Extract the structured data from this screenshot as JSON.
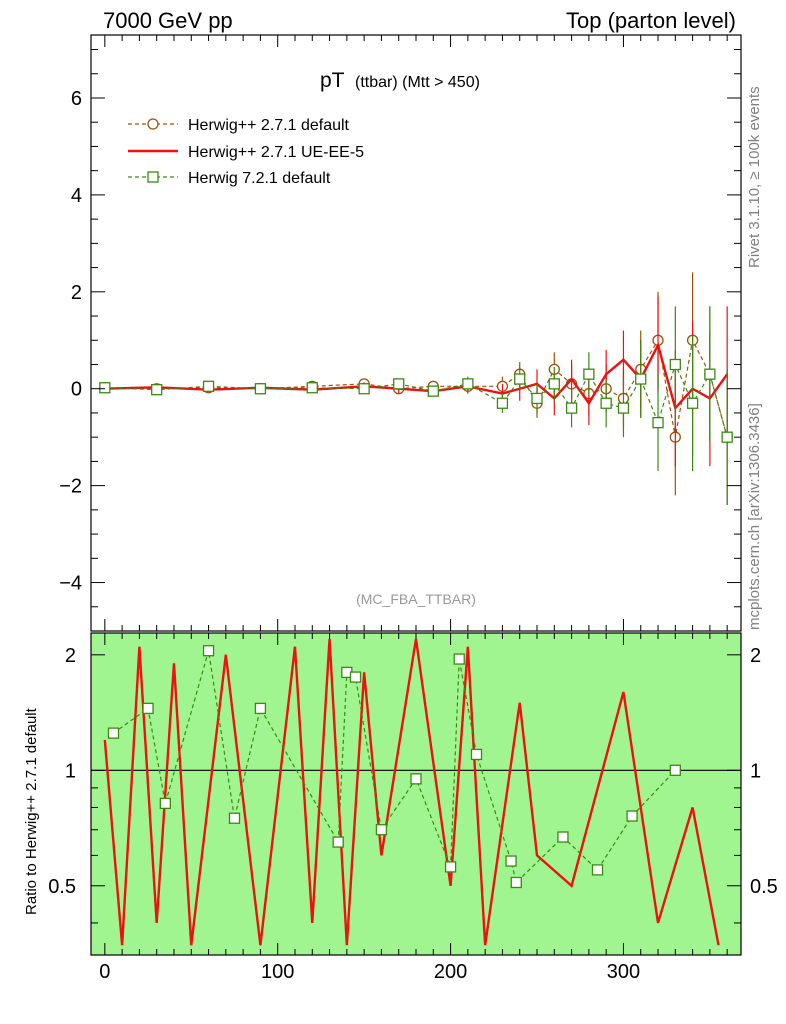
{
  "header": {
    "left": "7000 GeV pp",
    "right": "Top (parton level)"
  },
  "side_labels": {
    "rivet": "Rivet 3.1.10, ≥ 100k events",
    "mcplots": "mcplots.cern.ch [arXiv:1306.3436]"
  },
  "chart_data": {
    "type": "line",
    "title_main": "pT",
    "title_sub": "(ttbar) (Mtt > 450)",
    "watermark": "(MC_FBA_TTBAR)",
    "xlabel": "",
    "ylabel": "",
    "ratio_ylabel": "Ratio to Herwig++ 2.7.1 default",
    "xlim": [
      -8,
      368
    ],
    "ylim": [
      -5,
      7.3
    ],
    "ratio_ylim": [
      0.33,
      2.28
    ],
    "x_ticks": [
      0,
      100,
      200,
      300
    ],
    "y_ticks": [
      -4,
      -2,
      0,
      2,
      4,
      6
    ],
    "ratio_ticks": [
      0.5,
      1,
      2
    ],
    "ratio_reference": 1,
    "colors": {
      "herwigpp_default": "#a0500a",
      "herwigpp_ueee5": "#ee1111",
      "herwig7_default": "#3a8a10",
      "band_green": "#a0f590",
      "band_yellow": "#fffd99"
    },
    "series": [
      {
        "name": "Herwig++ 2.7.1 default",
        "style": "dashed-circle",
        "x": [
          0,
          30,
          60,
          90,
          120,
          150,
          170,
          190,
          210,
          230,
          240,
          250,
          260,
          270,
          280,
          290,
          300,
          310,
          320,
          330,
          340,
          350,
          360
        ],
        "y": [
          0.02,
          0.0,
          0.02,
          0.0,
          0.05,
          0.1,
          0.0,
          0.05,
          0.05,
          0.05,
          0.3,
          -0.3,
          0.4,
          0.1,
          -0.1,
          0.0,
          -0.2,
          0.4,
          1.0,
          -1.0,
          1.0,
          0.3,
          -1.0
        ],
        "err": [
          0.03,
          0.03,
          0.04,
          0.05,
          0.06,
          0.08,
          0.1,
          0.1,
          0.15,
          0.2,
          0.25,
          0.3,
          0.35,
          0.4,
          0.45,
          0.5,
          0.6,
          0.8,
          1.0,
          1.2,
          1.4,
          1.4,
          1.4
        ]
      },
      {
        "name": "Herwig++ 2.7.1 UE-EE-5",
        "style": "solid",
        "x": [
          0,
          30,
          60,
          90,
          120,
          150,
          170,
          190,
          210,
          230,
          240,
          250,
          260,
          270,
          280,
          290,
          300,
          310,
          320,
          330,
          340,
          350,
          360
        ],
        "y": [
          0.0,
          0.03,
          -0.02,
          0.02,
          -0.02,
          0.05,
          0.0,
          -0.05,
          0.05,
          -0.1,
          0.0,
          0.1,
          -0.2,
          0.2,
          -0.3,
          0.3,
          0.6,
          0.2,
          0.9,
          -0.4,
          0.0,
          -0.2,
          0.3
        ],
        "err": [
          0.03,
          0.03,
          0.04,
          0.05,
          0.06,
          0.08,
          0.1,
          0.1,
          0.15,
          0.2,
          0.25,
          0.3,
          0.35,
          0.4,
          0.45,
          0.5,
          0.6,
          0.8,
          1.0,
          1.2,
          1.4,
          1.4,
          1.4
        ]
      },
      {
        "name": "Herwig 7.2.1 default",
        "style": "dashed-square",
        "x": [
          0,
          30,
          60,
          90,
          120,
          150,
          170,
          190,
          210,
          230,
          240,
          250,
          260,
          270,
          280,
          290,
          300,
          310,
          320,
          330,
          340,
          350,
          360
        ],
        "y": [
          0.02,
          -0.02,
          0.05,
          0.0,
          0.02,
          0.0,
          0.1,
          -0.05,
          0.1,
          -0.3,
          0.2,
          -0.2,
          0.1,
          -0.4,
          0.3,
          -0.3,
          -0.4,
          0.2,
          -0.7,
          0.5,
          -0.3,
          0.3,
          -1.0
        ],
        "err": [
          0.03,
          0.03,
          0.04,
          0.05,
          0.06,
          0.08,
          0.1,
          0.1,
          0.15,
          0.2,
          0.25,
          0.3,
          0.35,
          0.4,
          0.45,
          0.5,
          0.6,
          0.8,
          1.0,
          1.2,
          1.4,
          1.4,
          1.4
        ]
      }
    ],
    "ratio_series": [
      {
        "name": "Herwig++ 2.7.1 UE-EE-5",
        "style": "solid",
        "x": [
          0,
          10,
          20,
          30,
          40,
          50,
          70,
          90,
          110,
          120,
          130,
          140,
          150,
          160,
          180,
          200,
          210,
          220,
          240,
          250,
          270,
          300,
          320,
          340,
          355
        ],
        "y": [
          1.2,
          0.35,
          2.1,
          0.4,
          1.9,
          0.35,
          2.0,
          0.35,
          2.1,
          0.4,
          2.2,
          0.35,
          1.8,
          0.6,
          2.2,
          0.5,
          2.1,
          0.35,
          1.5,
          0.6,
          0.5,
          1.6,
          0.4,
          0.8,
          0.35
        ]
      },
      {
        "name": "Herwig 7.2.1 default",
        "style": "dashed-square",
        "x": [
          5,
          25,
          35,
          60,
          75,
          90,
          135,
          140,
          145,
          160,
          180,
          200,
          205,
          215,
          235,
          238,
          265,
          285,
          305,
          330
        ],
        "y": [
          1.25,
          1.45,
          0.82,
          2.05,
          0.75,
          1.45,
          0.65,
          1.8,
          1.75,
          0.7,
          0.95,
          0.56,
          1.95,
          1.1,
          0.58,
          0.51,
          0.67,
          0.55,
          0.76,
          1.0
        ]
      }
    ],
    "legend_position": "top-left",
    "grid": false
  }
}
